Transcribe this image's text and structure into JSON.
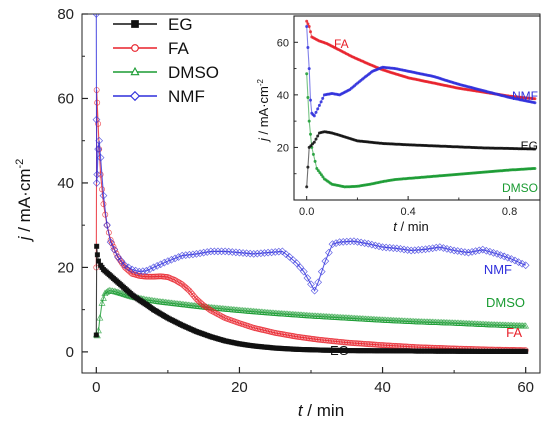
{
  "chart_data": [
    {
      "type": "line",
      "role": "main",
      "xlabel_var": "t",
      "xlabel_unit": "min",
      "ylabel_var": "j",
      "ylabel_unit": "mA·cm",
      "ylabel_exp": "-2",
      "xlim": [
        -2,
        62
      ],
      "ylim": [
        -5,
        80
      ],
      "xticks": [
        0,
        20,
        40,
        60
      ],
      "yticks": [
        0,
        20,
        40,
        60,
        80
      ],
      "legend_position": "top-left",
      "legend": [
        "EG",
        "FA",
        "DMSO",
        "NMF"
      ],
      "series": [
        {
          "name": "EG",
          "color": "#111111",
          "marker": "square",
          "label": "EG",
          "points": [
            [
              0.0,
              4.0
            ],
            [
              0.05,
              25.0
            ],
            [
              0.15,
              23.0
            ],
            [
              0.3,
              21.5
            ],
            [
              0.6,
              20.5
            ],
            [
              1,
              19.5
            ],
            [
              2,
              18.0
            ],
            [
              3,
              16.5
            ],
            [
              4,
              15.0
            ],
            [
              5,
              13.5
            ],
            [
              6,
              12.3
            ],
            [
              7,
              11.2
            ],
            [
              8,
              10.0
            ],
            [
              9,
              9.0
            ],
            [
              10,
              8.0
            ],
            [
              12,
              6.3
            ],
            [
              14,
              4.8
            ],
            [
              16,
              3.6
            ],
            [
              18,
              2.6
            ],
            [
              20,
              1.9
            ],
            [
              22,
              1.4
            ],
            [
              25,
              0.9
            ],
            [
              28,
              0.6
            ],
            [
              32,
              0.4
            ],
            [
              36,
              0.3
            ],
            [
              40,
              0.25
            ],
            [
              45,
              0.2
            ],
            [
              50,
              0.15
            ],
            [
              55,
              0.1
            ],
            [
              60,
              0.1
            ]
          ]
        },
        {
          "name": "FA",
          "color": "#e8202a",
          "marker": "circle",
          "label": "FA",
          "points": [
            [
              0.0,
              20.0
            ],
            [
              0.05,
              62.0
            ],
            [
              0.12,
              59.0
            ],
            [
              0.25,
              54.0
            ],
            [
              0.4,
              48.0
            ],
            [
              0.6,
              42.0
            ],
            [
              1,
              35.0
            ],
            [
              1.5,
              30.0
            ],
            [
              2,
              26.5
            ],
            [
              3,
              22.5
            ],
            [
              4,
              20.0
            ],
            [
              5,
              18.5
            ],
            [
              6,
              18.0
            ],
            [
              7,
              17.8
            ],
            [
              8,
              17.8
            ],
            [
              9,
              17.9
            ],
            [
              10,
              17.7
            ],
            [
              11,
              17.0
            ],
            [
              12,
              16.0
            ],
            [
              13,
              14.5
            ],
            [
              14,
              12.5
            ],
            [
              15,
              11.0
            ],
            [
              16,
              9.8
            ],
            [
              18,
              8.0
            ],
            [
              20,
              6.8
            ],
            [
              22,
              5.7
            ],
            [
              25,
              4.5
            ],
            [
              28,
              3.6
            ],
            [
              31,
              2.9
            ],
            [
              35,
              2.2
            ],
            [
              40,
              1.6
            ],
            [
              45,
              1.1
            ],
            [
              50,
              0.8
            ],
            [
              55,
              0.55
            ],
            [
              60,
              0.4
            ]
          ]
        },
        {
          "name": "DMSO",
          "color": "#1a9b32",
          "marker": "triangle",
          "label": "DMSO",
          "points": [
            [
              0.0,
              4.0
            ],
            [
              0.15,
              3.8
            ],
            [
              0.3,
              5.0
            ],
            [
              0.5,
              8.0
            ],
            [
              0.8,
              11.5
            ],
            [
              1.2,
              13.8
            ],
            [
              1.8,
              14.5
            ],
            [
              2.5,
              14.3
            ],
            [
              3.5,
              13.8
            ],
            [
              5,
              13.0
            ],
            [
              7,
              12.3
            ],
            [
              9,
              11.8
            ],
            [
              12,
              11.2
            ],
            [
              15,
              10.6
            ],
            [
              20,
              9.8
            ],
            [
              25,
              9.1
            ],
            [
              30,
              8.5
            ],
            [
              35,
              8.0
            ],
            [
              40,
              7.5
            ],
            [
              45,
              7.1
            ],
            [
              50,
              6.8
            ],
            [
              55,
              6.4
            ],
            [
              60,
              6.1
            ]
          ]
        },
        {
          "name": "NMF",
          "color": "#2f2fdc",
          "marker": "diamond",
          "label": "NMF",
          "points": [
            [
              0.0,
              80.0
            ],
            [
              0.02,
              55.0
            ],
            [
              0.06,
              40.0
            ],
            [
              0.12,
              42.0
            ],
            [
              0.25,
              48.0
            ],
            [
              0.4,
              50.0
            ],
            [
              0.6,
              46.0
            ],
            [
              1,
              37.0
            ],
            [
              1.5,
              30.0
            ],
            [
              2,
              26.0
            ],
            [
              3,
              22.5
            ],
            [
              4,
              20.5
            ],
            [
              5,
              19.5
            ],
            [
              6,
              19.0
            ],
            [
              7,
              19.2
            ],
            [
              8,
              20.0
            ],
            [
              10,
              21.5
            ],
            [
              12,
              22.8
            ],
            [
              14,
              23.2
            ],
            [
              16,
              23.8
            ],
            [
              18,
              23.8
            ],
            [
              20,
              23.5
            ],
            [
              22,
              23.2
            ],
            [
              24,
              23.5
            ],
            [
              26,
              23.8
            ],
            [
              27,
              22.5
            ],
            [
              28,
              21.0
            ],
            [
              29,
              19.0
            ],
            [
              30,
              16.0
            ],
            [
              30.5,
              14.5
            ],
            [
              31,
              16.5
            ],
            [
              32,
              21.5
            ],
            [
              33,
              25.5
            ],
            [
              34,
              26.0
            ],
            [
              36,
              26.2
            ],
            [
              38,
              25.6
            ],
            [
              40,
              24.8
            ],
            [
              42,
              24.5
            ],
            [
              44,
              24.0
            ],
            [
              46,
              24.3
            ],
            [
              48,
              24.8
            ],
            [
              50,
              24.0
            ],
            [
              52,
              23.5
            ],
            [
              54,
              24.2
            ],
            [
              56,
              23.2
            ],
            [
              58,
              22.0
            ],
            [
              60,
              20.5
            ]
          ]
        }
      ]
    },
    {
      "type": "line",
      "role": "inset",
      "xlabel_var": "t",
      "xlabel_unit": "min",
      "ylabel_var": "j",
      "ylabel_unit": "mA·cm",
      "ylabel_exp": "-2",
      "xlim": [
        -0.05,
        0.92
      ],
      "ylim": [
        0,
        70
      ],
      "xticks": [
        0.0,
        0.4,
        0.8
      ],
      "yticks": [
        20,
        40,
        60
      ],
      "series": [
        {
          "name": "EG",
          "color": "#111111",
          "label": "EG",
          "points": [
            [
              0.0,
              5.0
            ],
            [
              0.01,
              20.0
            ],
            [
              0.03,
              22.0
            ],
            [
              0.05,
              25.5
            ],
            [
              0.07,
              26.0
            ],
            [
              0.1,
              25.5
            ],
            [
              0.15,
              24.0
            ],
            [
              0.2,
              22.5
            ],
            [
              0.3,
              21.5
            ],
            [
              0.4,
              21.0
            ],
            [
              0.5,
              20.6
            ],
            [
              0.6,
              20.2
            ],
            [
              0.7,
              19.8
            ],
            [
              0.8,
              19.6
            ],
            [
              0.9,
              19.4
            ]
          ]
        },
        {
          "name": "FA",
          "color": "#e8202a",
          "label": "FA",
          "points": [
            [
              0.0,
              68.0
            ],
            [
              0.01,
              66.0
            ],
            [
              0.02,
              62.0
            ],
            [
              0.05,
              60.5
            ],
            [
              0.08,
              59.5
            ],
            [
              0.12,
              57.5
            ],
            [
              0.18,
              54.5
            ],
            [
              0.25,
              51.5
            ],
            [
              0.3,
              49.5
            ],
            [
              0.4,
              46.5
            ],
            [
              0.5,
              44.5
            ],
            [
              0.6,
              42.5
            ],
            [
              0.7,
              41.0
            ],
            [
              0.8,
              39.5
            ],
            [
              0.9,
              38.5
            ]
          ]
        },
        {
          "name": "DMSO",
          "color": "#1a9b32",
          "label": "DMSO",
          "points": [
            [
              0.0,
              48.0
            ],
            [
              0.01,
              30.0
            ],
            [
              0.02,
              20.0
            ],
            [
              0.04,
              12.0
            ],
            [
              0.07,
              8.0
            ],
            [
              0.1,
              6.0
            ],
            [
              0.15,
              5.0
            ],
            [
              0.2,
              5.2
            ],
            [
              0.25,
              6.0
            ],
            [
              0.3,
              7.0
            ],
            [
              0.35,
              7.8
            ],
            [
              0.4,
              8.2
            ],
            [
              0.5,
              9.0
            ],
            [
              0.6,
              9.8
            ],
            [
              0.7,
              10.6
            ],
            [
              0.8,
              11.4
            ],
            [
              0.9,
              12.0
            ]
          ]
        },
        {
          "name": "NMF",
          "color": "#2f2fdc",
          "label": "NMF",
          "points": [
            [
              0.0,
              66.0
            ],
            [
              0.005,
              58.0
            ],
            [
              0.01,
              50.0
            ],
            [
              0.015,
              38.0
            ],
            [
              0.02,
              33.0
            ],
            [
              0.03,
              32.0
            ],
            [
              0.05,
              36.0
            ],
            [
              0.07,
              40.0
            ],
            [
              0.1,
              40.5
            ],
            [
              0.13,
              40.0
            ],
            [
              0.17,
              42.0
            ],
            [
              0.22,
              46.0
            ],
            [
              0.26,
              49.0
            ],
            [
              0.3,
              50.5
            ],
            [
              0.35,
              50.0
            ],
            [
              0.4,
              49.0
            ],
            [
              0.5,
              47.0
            ],
            [
              0.6,
              44.0
            ],
            [
              0.7,
              41.5
            ],
            [
              0.8,
              39.0
            ],
            [
              0.9,
              37.0
            ]
          ]
        }
      ]
    }
  ]
}
